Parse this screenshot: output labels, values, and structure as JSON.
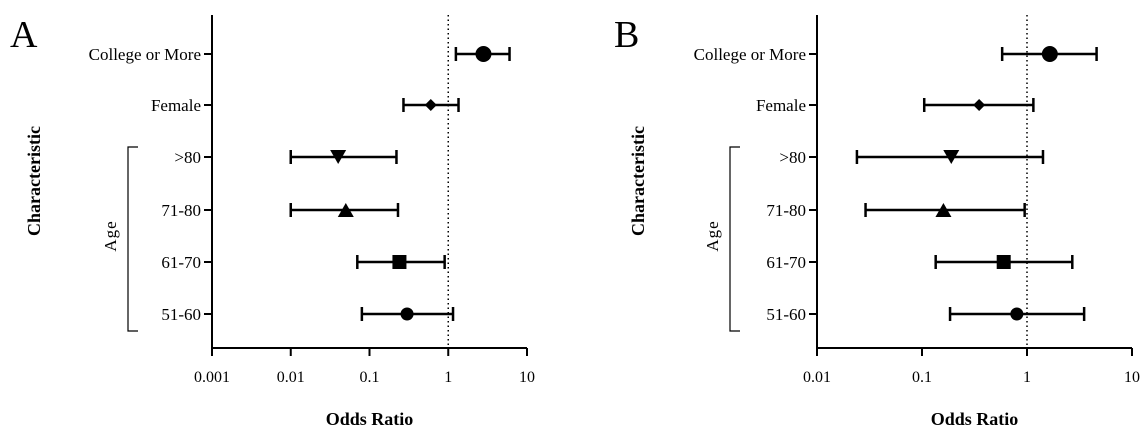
{
  "chart_data": [
    {
      "type": "forest",
      "panel_label": "A",
      "xlabel": "Odds Ratio",
      "ylabel": "Characteristic",
      "group_label": "Age",
      "x_scale": "log",
      "xlim": [
        0.001,
        10
      ],
      "x_ticks": [
        "0.001",
        "0.01",
        "0.1",
        "1",
        "10"
      ],
      "reference_line": 1,
      "categories": [
        "College or More",
        "Female",
        ">80",
        "71-80",
        "61-70",
        "51-60"
      ],
      "points": [
        {
          "label": "College or More",
          "or": 2.8,
          "lower": 1.25,
          "upper": 6.0,
          "marker": "circle-large"
        },
        {
          "label": "Female",
          "or": 0.6,
          "lower": 0.27,
          "upper": 1.35,
          "marker": "diamond"
        },
        {
          "label": ">80",
          "or": 0.04,
          "lower": 0.01,
          "upper": 0.22,
          "marker": "triangle-down"
        },
        {
          "label": "71-80",
          "or": 0.05,
          "lower": 0.01,
          "upper": 0.23,
          "marker": "triangle-up"
        },
        {
          "label": "61-70",
          "or": 0.24,
          "lower": 0.07,
          "upper": 0.9,
          "marker": "square"
        },
        {
          "label": "51-60",
          "or": 0.3,
          "lower": 0.08,
          "upper": 1.15,
          "marker": "circle"
        }
      ]
    },
    {
      "type": "forest",
      "panel_label": "B",
      "xlabel": "Odds Ratio",
      "ylabel": "Characteristic",
      "group_label": "Age",
      "x_scale": "log",
      "xlim": [
        0.01,
        10
      ],
      "x_ticks": [
        "0.01",
        "0.1",
        "1",
        "10"
      ],
      "reference_line": 1,
      "categories": [
        "College or More",
        "Female",
        ">80",
        "71-80",
        "61-70",
        "51-60"
      ],
      "points": [
        {
          "label": "College or More",
          "or": 1.65,
          "lower": 0.58,
          "upper": 4.6,
          "marker": "circle-large"
        },
        {
          "label": "Female",
          "or": 0.35,
          "lower": 0.105,
          "upper": 1.15,
          "marker": "diamond"
        },
        {
          "label": ">80",
          "or": 0.19,
          "lower": 0.024,
          "upper": 1.42,
          "marker": "triangle-down"
        },
        {
          "label": "71-80",
          "or": 0.16,
          "lower": 0.029,
          "upper": 0.95,
          "marker": "triangle-up"
        },
        {
          "label": "61-70",
          "or": 0.6,
          "lower": 0.135,
          "upper": 2.7,
          "marker": "square"
        },
        {
          "label": "51-60",
          "or": 0.8,
          "lower": 0.185,
          "upper": 3.5,
          "marker": "circle"
        }
      ]
    }
  ]
}
